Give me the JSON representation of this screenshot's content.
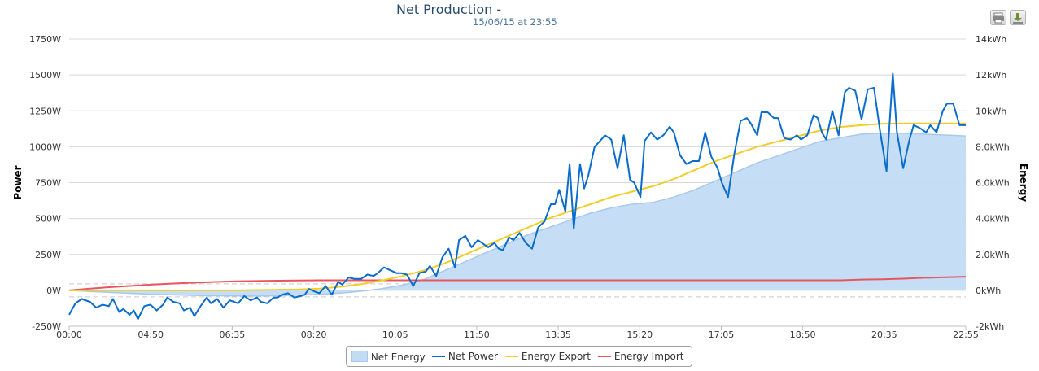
{
  "title": "Net Production -",
  "subtitle": "15/06/15 at 23:55",
  "toolbar": {
    "print_icon": "printer-icon",
    "download_icon": "download-icon"
  },
  "chart_data": {
    "type": "line",
    "title": "Net Production -",
    "subtitle": "15/06/15 at 23:55",
    "x_ticks": [
      "00:00",
      "04:50",
      "06:35",
      "08:20",
      "10:05",
      "11:50",
      "13:35",
      "15:20",
      "17:05",
      "18:50",
      "20:35",
      "22:55"
    ],
    "y_left": {
      "label": "Power",
      "ticks": [
        "-250W",
        "0W",
        "250W",
        "500W",
        "750W",
        "1000W",
        "1250W",
        "1500W",
        "1750W"
      ],
      "min": -250,
      "max": 1750
    },
    "y_right": {
      "label": "Energy",
      "ticks": [
        "-2kWh",
        "0kWh",
        "2.0kWh",
        "4.0kWh",
        "6.0kWh",
        "8.0kWh",
        "10kWh",
        "12kWh",
        "14kWh"
      ],
      "min": -2,
      "max": 14
    },
    "grid": true,
    "legend_position": "bottom-center",
    "colors": {
      "net_energy_fill": "#c2dcf4",
      "net_energy_line": "#a8c9ec",
      "net_power": "#0a6ccc",
      "energy_export": "#f2cd2c",
      "energy_import": "#e9555f",
      "grid": "#d8d8d8",
      "axis": "#bfbfbf",
      "plotline": "#c9c9c9"
    },
    "series": [
      {
        "name": "Net Energy",
        "type": "area",
        "axis": "right",
        "points": [
          [
            0,
            0
          ],
          [
            1,
            -0.06
          ],
          [
            2,
            -0.12
          ],
          [
            3,
            -0.17
          ],
          [
            4,
            -0.22
          ],
          [
            5,
            -0.25
          ],
          [
            6,
            -0.28
          ],
          [
            7,
            -0.3
          ],
          [
            8,
            -0.31
          ],
          [
            9,
            -0.32
          ],
          [
            10,
            -0.3
          ],
          [
            11,
            -0.27
          ],
          [
            12,
            -0.22
          ],
          [
            13,
            -0.15
          ],
          [
            14,
            -0.05
          ],
          [
            15,
            0.1
          ],
          [
            16,
            0.3
          ],
          [
            17,
            0.6
          ],
          [
            18,
            1.1
          ],
          [
            19,
            1.6
          ],
          [
            20,
            2.1
          ],
          [
            21,
            2.6
          ],
          [
            22,
            3.1
          ],
          [
            23,
            3.5
          ],
          [
            24,
            3.9
          ],
          [
            25,
            4.3
          ],
          [
            26,
            4.6
          ],
          [
            27,
            4.8
          ],
          [
            28,
            4.9
          ],
          [
            29,
            5.2
          ],
          [
            30,
            5.6
          ],
          [
            31,
            6.1
          ],
          [
            32,
            6.6
          ],
          [
            33,
            7.1
          ],
          [
            34,
            7.5
          ],
          [
            35,
            7.9
          ],
          [
            36,
            8.3
          ],
          [
            37,
            8.5
          ],
          [
            38,
            8.7
          ],
          [
            39,
            8.75
          ],
          [
            40,
            8.75
          ],
          [
            41,
            8.7
          ],
          [
            42,
            8.65
          ],
          [
            43,
            8.6
          ]
        ]
      },
      {
        "name": "Net Power",
        "type": "line",
        "axis": "left",
        "points": [
          [
            0,
            -170
          ],
          [
            0.3,
            -90
          ],
          [
            0.6,
            -60
          ],
          [
            1,
            -80
          ],
          [
            1.3,
            -120
          ],
          [
            1.6,
            -100
          ],
          [
            1.9,
            -110
          ],
          [
            2.1,
            -60
          ],
          [
            2.4,
            -150
          ],
          [
            2.6,
            -130
          ],
          [
            2.9,
            -170
          ],
          [
            3.1,
            -140
          ],
          [
            3.3,
            -200
          ],
          [
            3.6,
            -110
          ],
          [
            3.9,
            -100
          ],
          [
            4.2,
            -140
          ],
          [
            4.5,
            -100
          ],
          [
            4.7,
            -50
          ],
          [
            5,
            -80
          ],
          [
            5.3,
            -90
          ],
          [
            5.5,
            -140
          ],
          [
            5.8,
            -120
          ],
          [
            6,
            -180
          ],
          [
            6.3,
            -110
          ],
          [
            6.6,
            -50
          ],
          [
            6.8,
            -90
          ],
          [
            7.1,
            -60
          ],
          [
            7.4,
            -120
          ],
          [
            7.7,
            -70
          ],
          [
            7.9,
            -80
          ],
          [
            8.1,
            -90
          ],
          [
            8.4,
            -40
          ],
          [
            8.7,
            -70
          ],
          [
            9,
            -50
          ],
          [
            9.2,
            -80
          ],
          [
            9.5,
            -90
          ],
          [
            9.8,
            -50
          ],
          [
            10,
            -50
          ],
          [
            10.2,
            -30
          ],
          [
            10.5,
            -20
          ],
          [
            10.8,
            -50
          ],
          [
            11.1,
            -40
          ],
          [
            11.3,
            -30
          ],
          [
            11.5,
            10
          ],
          [
            11.8,
            -10
          ],
          [
            12,
            -20
          ],
          [
            12.3,
            30
          ],
          [
            12.6,
            -30
          ],
          [
            12.9,
            60
          ],
          [
            13.1,
            40
          ],
          [
            13.4,
            90
          ],
          [
            13.7,
            80
          ],
          [
            14,
            80
          ],
          [
            14.3,
            110
          ],
          [
            14.6,
            100
          ],
          [
            14.8,
            120
          ],
          [
            15.1,
            160
          ],
          [
            15.4,
            140
          ],
          [
            15.7,
            120
          ],
          [
            15.9,
            120
          ],
          [
            16.2,
            110
          ],
          [
            16.5,
            30
          ],
          [
            16.8,
            120
          ],
          [
            17.1,
            130
          ],
          [
            17.3,
            170
          ],
          [
            17.6,
            100
          ],
          [
            17.9,
            230
          ],
          [
            18.2,
            290
          ],
          [
            18.5,
            160
          ],
          [
            18.7,
            350
          ],
          [
            19,
            380
          ],
          [
            19.3,
            300
          ],
          [
            19.6,
            350
          ],
          [
            19.9,
            320
          ],
          [
            20.1,
            300
          ],
          [
            20.4,
            330
          ],
          [
            20.6,
            290
          ],
          [
            20.8,
            280
          ],
          [
            21.1,
            370
          ],
          [
            21.3,
            350
          ],
          [
            21.6,
            400
          ],
          [
            21.9,
            330
          ],
          [
            22.2,
            290
          ],
          [
            22.5,
            440
          ],
          [
            22.8,
            480
          ],
          [
            23.1,
            600
          ],
          [
            23.3,
            600
          ],
          [
            23.5,
            700
          ],
          [
            23.8,
            550
          ],
          [
            24,
            880
          ],
          [
            24.2,
            430
          ],
          [
            24.5,
            880
          ],
          [
            24.7,
            710
          ],
          [
            24.9,
            800
          ],
          [
            25.2,
            1000
          ],
          [
            25.4,
            1030
          ],
          [
            25.7,
            1080
          ],
          [
            26,
            1050
          ],
          [
            26.3,
            850
          ],
          [
            26.6,
            1080
          ],
          [
            26.9,
            770
          ],
          [
            27.1,
            750
          ],
          [
            27.4,
            650
          ],
          [
            27.6,
            1040
          ],
          [
            27.9,
            1100
          ],
          [
            28.2,
            1050
          ],
          [
            28.5,
            1080
          ],
          [
            28.8,
            1140
          ],
          [
            29,
            1100
          ],
          [
            29.3,
            940
          ],
          [
            29.6,
            880
          ],
          [
            29.9,
            900
          ],
          [
            30.2,
            900
          ],
          [
            30.5,
            1100
          ],
          [
            30.8,
            930
          ],
          [
            31.1,
            850
          ],
          [
            31.3,
            750
          ],
          [
            31.6,
            650
          ],
          [
            31.9,
            950
          ],
          [
            32.2,
            1180
          ],
          [
            32.5,
            1200
          ],
          [
            32.7,
            1160
          ],
          [
            33,
            1080
          ],
          [
            33.2,
            1240
          ],
          [
            33.5,
            1240
          ],
          [
            33.8,
            1200
          ],
          [
            34,
            1200
          ],
          [
            34.3,
            1060
          ],
          [
            34.6,
            1050
          ],
          [
            34.9,
            1080
          ],
          [
            35.1,
            1050
          ],
          [
            35.4,
            1080
          ],
          [
            35.7,
            1220
          ],
          [
            35.9,
            1200
          ],
          [
            36.1,
            1100
          ],
          [
            36.3,
            1050
          ],
          [
            36.6,
            1250
          ],
          [
            36.9,
            1080
          ],
          [
            37.2,
            1380
          ],
          [
            37.4,
            1410
          ],
          [
            37.7,
            1390
          ],
          [
            38,
            1190
          ],
          [
            38.3,
            1400
          ],
          [
            38.6,
            1410
          ],
          [
            38.9,
            1100
          ],
          [
            39.2,
            830
          ],
          [
            39.5,
            1510
          ],
          [
            39.7,
            1100
          ],
          [
            40,
            850
          ],
          [
            40.3,
            1050
          ],
          [
            40.5,
            1150
          ],
          [
            40.8,
            1130
          ],
          [
            41.1,
            1100
          ],
          [
            41.3,
            1150
          ],
          [
            41.6,
            1100
          ],
          [
            41.9,
            1250
          ],
          [
            42.1,
            1300
          ],
          [
            42.4,
            1300
          ],
          [
            42.7,
            1150
          ],
          [
            43,
            1150
          ],
          [
            43,
            1150
          ]
        ]
      },
      {
        "name": "Energy Export",
        "type": "line",
        "axis": "right",
        "points": [
          [
            0,
            0
          ],
          [
            4,
            0
          ],
          [
            8,
            0
          ],
          [
            11,
            0.05
          ],
          [
            12,
            0.1
          ],
          [
            13,
            0.2
          ],
          [
            14,
            0.35
          ],
          [
            15,
            0.55
          ],
          [
            16,
            0.8
          ],
          [
            17,
            1.1
          ],
          [
            18,
            1.5
          ],
          [
            19,
            2
          ],
          [
            20,
            2.5
          ],
          [
            21,
            3
          ],
          [
            22,
            3.5
          ],
          [
            23,
            4
          ],
          [
            24,
            4.4
          ],
          [
            25,
            4.8
          ],
          [
            26,
            5.2
          ],
          [
            27,
            5.5
          ],
          [
            28,
            5.8
          ],
          [
            29,
            6.2
          ],
          [
            30,
            6.7
          ],
          [
            31,
            7.2
          ],
          [
            32,
            7.6
          ],
          [
            33,
            8.0
          ],
          [
            34,
            8.3
          ],
          [
            35,
            8.6
          ],
          [
            36,
            8.9
          ],
          [
            37,
            9.1
          ],
          [
            38,
            9.2
          ],
          [
            39,
            9.28
          ],
          [
            40,
            9.3
          ],
          [
            41,
            9.3
          ],
          [
            42,
            9.3
          ],
          [
            43,
            9.3
          ]
        ]
      },
      {
        "name": "Energy Import",
        "type": "line",
        "axis": "right",
        "points": [
          [
            0,
            0
          ],
          [
            1,
            0.1
          ],
          [
            2,
            0.18
          ],
          [
            3,
            0.25
          ],
          [
            4,
            0.32
          ],
          [
            5,
            0.38
          ],
          [
            6,
            0.43
          ],
          [
            7,
            0.47
          ],
          [
            8,
            0.5
          ],
          [
            9,
            0.52
          ],
          [
            10,
            0.54
          ],
          [
            11,
            0.55
          ],
          [
            12,
            0.56
          ],
          [
            13,
            0.56
          ],
          [
            14,
            0.56
          ],
          [
            15,
            0.56
          ],
          [
            16,
            0.56
          ],
          [
            17,
            0.56
          ],
          [
            18,
            0.56
          ],
          [
            19,
            0.56
          ],
          [
            20,
            0.56
          ],
          [
            21,
            0.56
          ],
          [
            22,
            0.56
          ],
          [
            23,
            0.56
          ],
          [
            24,
            0.56
          ],
          [
            25,
            0.56
          ],
          [
            26,
            0.56
          ],
          [
            27,
            0.56
          ],
          [
            28,
            0.56
          ],
          [
            29,
            0.56
          ],
          [
            30,
            0.56
          ],
          [
            31,
            0.56
          ],
          [
            32,
            0.56
          ],
          [
            33,
            0.56
          ],
          [
            34,
            0.56
          ],
          [
            35,
            0.56
          ],
          [
            36,
            0.56
          ],
          [
            37,
            0.56
          ],
          [
            38,
            0.6
          ],
          [
            39,
            0.62
          ],
          [
            40,
            0.65
          ],
          [
            41,
            0.7
          ],
          [
            42,
            0.73
          ],
          [
            43,
            0.76
          ]
        ]
      }
    ]
  },
  "legend": {
    "items": [
      {
        "label": "Net Energy"
      },
      {
        "label": "Net Power"
      },
      {
        "label": "Energy Export"
      },
      {
        "label": "Energy Import"
      }
    ]
  }
}
